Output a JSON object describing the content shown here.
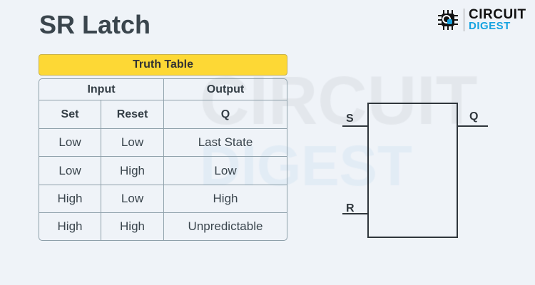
{
  "title": "SR Latch",
  "logo": {
    "line1": "CIRCUIT",
    "line2": "DIGEST"
  },
  "watermark": {
    "line1": "CIRCUIT",
    "line2": "DIGEST"
  },
  "truth_table": {
    "caption": "Truth Table",
    "group_headers": [
      "Input",
      "Output"
    ],
    "columns": [
      "Set",
      "Reset",
      "Q"
    ],
    "rows": [
      [
        "Low",
        "Low",
        "Last State"
      ],
      [
        "Low",
        "High",
        "Low"
      ],
      [
        "High",
        "Low",
        "High"
      ],
      [
        "High",
        "High",
        "Unpredictable"
      ]
    ]
  },
  "latch": {
    "input_s": "S",
    "input_r": "R",
    "output_q": "Q"
  },
  "colors": {
    "caption_bg": "#fdd835",
    "grid": "#8ea0aa",
    "logo_blue": "#16a3e0"
  }
}
